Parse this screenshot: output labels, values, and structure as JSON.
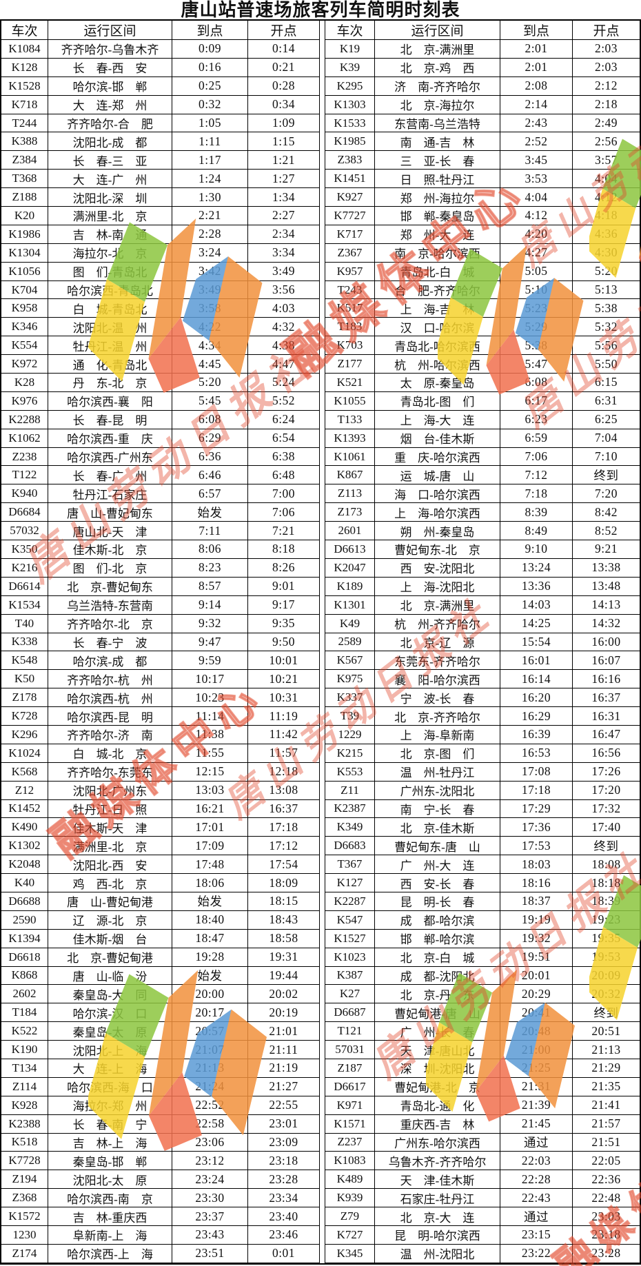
{
  "title": "唐山站普速场旅客列车简明时刻表",
  "column_headers": [
    "车次",
    "运行区间",
    "到点",
    "开点"
  ],
  "special_values": {
    "originate": "始发",
    "terminate": "终到",
    "pass": "通过"
  },
  "watermark": {
    "text_primary": "融媒体中心",
    "text_secondary": "唐山劳动日报社",
    "text_color": "#e2472a",
    "logo_colors": {
      "green": "#8dc63f",
      "yellow": "#f6d32d",
      "orange": "#f2913d",
      "salmon": "#f2704e",
      "blue": "#5b9bd5"
    }
  },
  "rows": [
    [
      "K1084",
      "齐齐哈尔-乌鲁木齐",
      "0:09",
      "0:14",
      "K19",
      "北　京-满洲里",
      "2:01",
      "2:03"
    ],
    [
      "K128",
      "长　春-西　安",
      "0:16",
      "0:21",
      "K39",
      "北　京-鸡　西",
      "2:01",
      "2:03"
    ],
    [
      "K1528",
      "哈尔滨-邯　郸",
      "0:25",
      "0:28",
      "K295",
      "济　南-齐齐哈尔",
      "2:08",
      "2:12"
    ],
    [
      "K718",
      "大　连-郑　州",
      "0:32",
      "0:34",
      "K1303",
      "北　京-海拉尔",
      "2:14",
      "2:18"
    ],
    [
      "T244",
      "齐齐哈尔-合　肥",
      "1:05",
      "1:09",
      "K1533",
      "东营南-乌兰浩特",
      "2:43",
      "2:49"
    ],
    [
      "K388",
      "沈阳北-成　都",
      "1:11",
      "1:15",
      "K1985",
      "南　通-吉　林",
      "2:52",
      "2:56"
    ],
    [
      "Z384",
      "长　春-三　亚",
      "1:17",
      "1:21",
      "Z383",
      "三　亚-长　春",
      "3:45",
      "3:57"
    ],
    [
      "T368",
      "大　连-广　州",
      "1:24",
      "1:27",
      "K1451",
      "日　照-牡丹江",
      "3:53",
      "4:04"
    ],
    [
      "Z188",
      "沈阳北-深　圳",
      "1:30",
      "1:34",
      "K927",
      "郑　州-海拉尔",
      "4:04",
      "4:12"
    ],
    [
      "K20",
      "满洲里-北　京",
      "2:21",
      "2:27",
      "K7727",
      "邯　郸-秦皇岛",
      "4:12",
      "4:18"
    ],
    [
      "K1986",
      "吉　林-南　通",
      "2:28",
      "2:34",
      "K717",
      "郑　州-大　连",
      "4:20",
      "4:36"
    ],
    [
      "K1304",
      "海拉尔-北　京",
      "3:24",
      "3:34",
      "Z367",
      "南　京-哈尔滨西",
      "4:27",
      "4:30"
    ],
    [
      "K1056",
      "图　们-青岛北",
      "3:42",
      "3:49",
      "K957",
      "青岛北-白　城",
      "5:05",
      "5:20"
    ],
    [
      "K704",
      "哈尔滨西-青岛北",
      "3:49",
      "3:56",
      "T243",
      "合　肥-齐齐哈尔",
      "5:10",
      "5:13"
    ],
    [
      "K958",
      "白　城-青岛北",
      "3:58",
      "4:03",
      "K517",
      "上　海-吉　林",
      "5:23",
      "5:38"
    ],
    [
      "K346",
      "沈阳北-温　州",
      "4:22",
      "4:32",
      "T183",
      "汉　口-哈尔滨",
      "5:29",
      "5:32"
    ],
    [
      "K554",
      "牡丹江-温　州",
      "4:34",
      "4:38",
      "K703",
      "青岛北-哈尔滨西",
      "5:38",
      "5:56"
    ],
    [
      "K972",
      "通　化-青岛北",
      "4:45",
      "4:47",
      "Z177",
      "杭　州-哈尔滨西",
      "5:47",
      "5:50"
    ],
    [
      "K28",
      "丹　东-北　京",
      "5:20",
      "5:24",
      "K521",
      "太　原-秦皇岛",
      "6:08",
      "6:15"
    ],
    [
      "K976",
      "哈尔滨西-襄　阳",
      "5:45",
      "5:52",
      "K1055",
      "青岛北-图　们",
      "6:17",
      "6:31"
    ],
    [
      "K2288",
      "长　春-昆　明",
      "6:08",
      "6:24",
      "T133",
      "上　海-大　连",
      "6:23",
      "6:25"
    ],
    [
      "K1062",
      "哈尔滨西-重　庆",
      "6:29",
      "6:54",
      "K1393",
      "烟　台-佳木斯",
      "6:59",
      "7:04"
    ],
    [
      "Z238",
      "哈尔滨西-广州东",
      "6:36",
      "6:38",
      "K1061",
      "重　庆-哈尔滨西",
      "7:06",
      "7:10"
    ],
    [
      "T122",
      "长　春-广　州",
      "6:46",
      "6:48",
      "K867",
      "运　城-唐　山",
      "7:12",
      "终到"
    ],
    [
      "K940",
      "牡丹江-石家庄",
      "6:57",
      "7:00",
      "Z113",
      "海　口-哈尔滨西",
      "7:18",
      "7:20"
    ],
    [
      "D6684",
      "唐　山-曹妃甸东",
      "始发",
      "7:06",
      "Z173",
      "上　海-哈尔滨西",
      "8:39",
      "8:42"
    ],
    [
      "57032",
      "唐山北-天　津",
      "7:11",
      "7:21",
      "2601",
      "朔　州-秦皇岛",
      "8:49",
      "8:52"
    ],
    [
      "K350",
      "佳木斯-北　京",
      "8:06",
      "8:18",
      "D6613",
      "曹妃甸东-北　京",
      "9:10",
      "9:21"
    ],
    [
      "K216",
      "图　们-北　京",
      "8:23",
      "8:26",
      "K2047",
      "西　安-沈阳北",
      "13:24",
      "13:38"
    ],
    [
      "D6614",
      "北　京-曹妃甸东",
      "8:57",
      "9:01",
      "K189",
      "上　海-沈阳北",
      "13:36",
      "13:48"
    ],
    [
      "K1534",
      "乌兰浩特-东营南",
      "9:14",
      "9:17",
      "K1301",
      "北　京-满洲里",
      "14:03",
      "14:13"
    ],
    [
      "T40",
      "齐齐哈尔-北　京",
      "9:32",
      "9:35",
      "K49",
      "杭　州-齐齐哈尔",
      "14:25",
      "14:32"
    ],
    [
      "K338",
      "长　春-宁　波",
      "9:47",
      "9:50",
      "2589",
      "北　京-辽　源",
      "15:54",
      "16:00"
    ],
    [
      "K548",
      "哈尔滨-成　都",
      "9:59",
      "10:01",
      "K567",
      "东莞东-齐齐哈尔",
      "16:01",
      "16:07"
    ],
    [
      "K50",
      "齐齐哈尔-杭　州",
      "10:17",
      "10:21",
      "K975",
      "襄　阳-哈尔滨西",
      "16:14",
      "16:16"
    ],
    [
      "Z178",
      "哈尔滨西-杭　州",
      "10:23",
      "10:31",
      "K337",
      "宁　波-长　春",
      "16:20",
      "16:37"
    ],
    [
      "K728",
      "哈尔滨西-昆　明",
      "11:14",
      "11:19",
      "T39",
      "北　京-齐齐哈尔",
      "16:29",
      "16:31"
    ],
    [
      "K296",
      "齐齐哈尔-济　南",
      "11:38",
      "11:42",
      "1229",
      "上　海-阜新南",
      "16:39",
      "16:47"
    ],
    [
      "K1024",
      "白　城-北　京",
      "11:55",
      "11:57",
      "K215",
      "北　京-图　们",
      "16:53",
      "16:56"
    ],
    [
      "K568",
      "齐齐哈尔-东莞东",
      "12:15",
      "12:18",
      "K553",
      "温　州-牡丹江",
      "17:08",
      "17:26"
    ],
    [
      "Z12",
      "沈阳北-广州东",
      "13:03",
      "13:08",
      "Z11",
      "广州东-沈阳北",
      "17:18",
      "17:20"
    ],
    [
      "K1452",
      "牡丹江-日　照",
      "16:21",
      "16:37",
      "K2387",
      "南　宁-长　春",
      "17:29",
      "17:32"
    ],
    [
      "K490",
      "佳木斯-天　津",
      "17:01",
      "17:18",
      "K349",
      "北　京-佳木斯",
      "17:36",
      "17:40"
    ],
    [
      "K1302",
      "满洲里-北　京",
      "17:09",
      "17:12",
      "D6683",
      "曹妃甸东-唐　山",
      "17:53",
      "终到"
    ],
    [
      "K2048",
      "沈阳北-西　安",
      "17:48",
      "17:54",
      "T367",
      "广　州-大　连",
      "18:03",
      "18:08"
    ],
    [
      "K40",
      "鸡　西-北　京",
      "18:06",
      "18:09",
      "K127",
      "西　安-长　春",
      "18:16",
      "18:18"
    ],
    [
      "D6688",
      "唐　山-曹妃甸港",
      "始发",
      "18:15",
      "K2287",
      "昆　明-长　春",
      "18:37",
      "18:39"
    ],
    [
      "2590",
      "辽　源-北　京",
      "18:40",
      "18:43",
      "K547",
      "成　都-哈尔滨",
      "19:19",
      "19:23"
    ],
    [
      "K1394",
      "佳木斯-烟　台",
      "18:47",
      "18:58",
      "K1527",
      "邯　郸-哈尔滨",
      "19:32",
      "19:35"
    ],
    [
      "D6618",
      "北　京-曹妃甸港",
      "19:28",
      "19:31",
      "K1023",
      "北　京-白　城",
      "19:51",
      "19:53"
    ],
    [
      "K868",
      "唐　山-临　汾",
      "始发",
      "19:44",
      "K387",
      "成　都-沈阳北",
      "20:01",
      "20:09"
    ],
    [
      "2602",
      "秦皇岛-大　同",
      "20:00",
      "20:02",
      "K27",
      "北　京-丹　东",
      "20:29",
      "20:32"
    ],
    [
      "T184",
      "哈尔滨-汉　口",
      "20:17",
      "20:19",
      "D6687",
      "曹妃甸港-唐　山",
      "20:41",
      "终到"
    ],
    [
      "K522",
      "秦皇岛-太　原",
      "20:57",
      "21:01",
      "T121",
      "广　州-长　春",
      "20:48",
      "20:51"
    ],
    [
      "K190",
      "沈阳北-上　海",
      "21:07",
      "21:11",
      "57031",
      "天　津-唐山北",
      "21:00",
      "21:13"
    ],
    [
      "T134",
      "大　连-上　海",
      "21:13",
      "21:19",
      "Z187",
      "深　圳-沈阳北",
      "21:25",
      "21:29"
    ],
    [
      "Z114",
      "哈尔滨西-海　口",
      "21:24",
      "21:27",
      "D6617",
      "曹妃甸港-北　京",
      "21:31",
      "21:35"
    ],
    [
      "K928",
      "海拉尔-郑　州",
      "22:52",
      "22:55",
      "K971",
      "青岛北-通　化",
      "21:39",
      "21:41"
    ],
    [
      "K2388",
      "长　春-南　宁",
      "22:58",
      "23:01",
      "K1571",
      "重庆西-吉　林",
      "21:45",
      "21:57"
    ],
    [
      "K518",
      "吉　林-上　海",
      "23:06",
      "23:09",
      "Z237",
      "广州东-哈尔滨西",
      "通过",
      "21:51"
    ],
    [
      "K7728",
      "秦皇岛-邯　郸",
      "23:12",
      "23:18",
      "K1083",
      "乌鲁木齐-齐齐哈尔",
      "22:03",
      "22:05"
    ],
    [
      "Z194",
      "沈阳北-太　原",
      "23:24",
      "23:28",
      "K489",
      "天　津-佳木斯",
      "22:28",
      "22:36"
    ],
    [
      "Z368",
      "哈尔滨西-南　京",
      "23:30",
      "23:34",
      "K939",
      "石家庄-牡丹江",
      "22:43",
      "22:48"
    ],
    [
      "K1572",
      "吉　林-重庆西",
      "23:37",
      "23:40",
      "Z79",
      "北　京-大　连",
      "通过",
      "23:03"
    ],
    [
      "1230",
      "阜新南-上　海",
      "23:43",
      "23:46",
      "K727",
      "昆　明-哈尔滨西",
      "23:15",
      "23:18"
    ],
    [
      "Z174",
      "哈尔滨西-上　海",
      "23:51",
      "0:01",
      "K345",
      "温　州-沈阳北",
      "23:22",
      "23:28"
    ]
  ]
}
